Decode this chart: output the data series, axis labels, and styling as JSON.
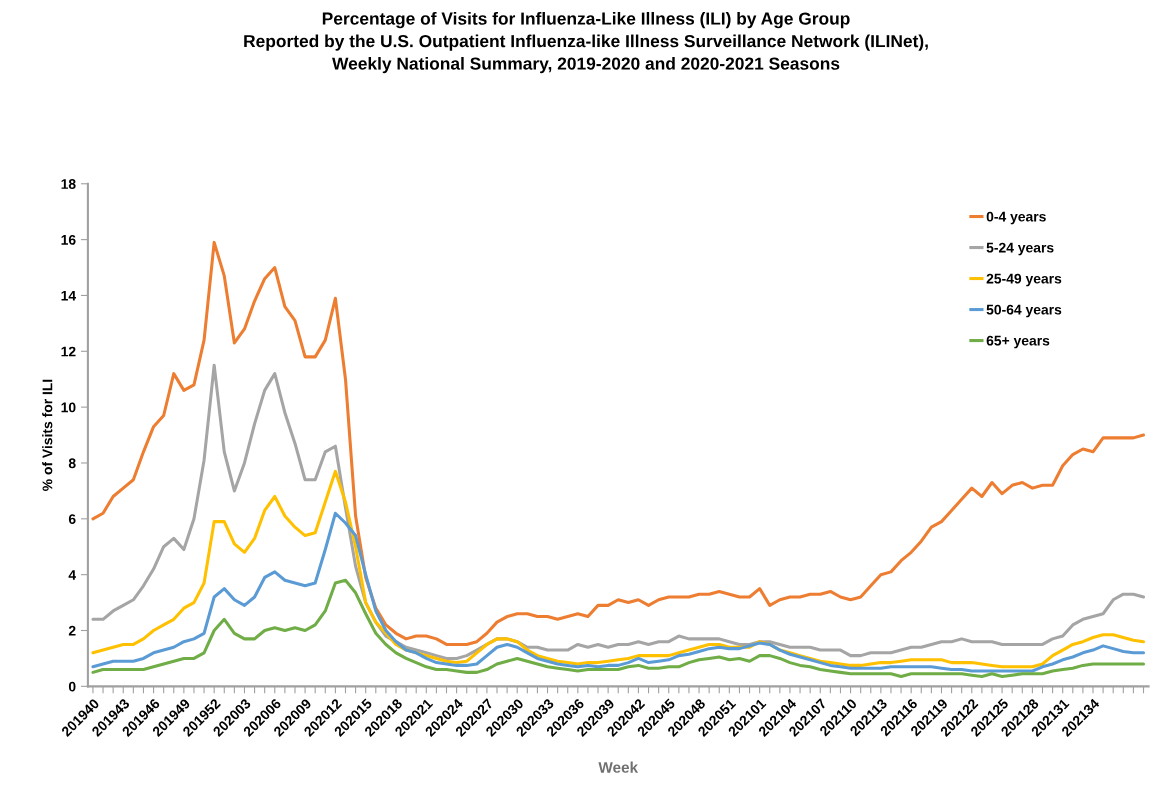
{
  "chart_data": {
    "type": "line",
    "title": "Percentage of Visits for Influenza-Like Illness (ILI) by Age Group\nReported by the U.S. Outpatient Influenza-like Illness Surveillance Network (ILINet),\nWeekly National Summary, 2019-2020 and 2020-2021 Seasons",
    "xlabel": "Week",
    "ylabel": "% of Visits for ILI",
    "categories": [
      "201940",
      null,
      null,
      "201943",
      null,
      null,
      "201946",
      null,
      null,
      "201949",
      null,
      null,
      "201952",
      null,
      null,
      "202003",
      null,
      null,
      "202006",
      null,
      null,
      "202009",
      null,
      null,
      "202012",
      null,
      null,
      "202015",
      null,
      null,
      "202018",
      null,
      null,
      "202021",
      null,
      null,
      "202024",
      null,
      null,
      "202027",
      null,
      null,
      "202030",
      null,
      null,
      "202033",
      null,
      null,
      "202036",
      null,
      null,
      "202039",
      null,
      null,
      "202042",
      null,
      null,
      "202045",
      null,
      null,
      "202048",
      null,
      null,
      "202051",
      null,
      null,
      "202101",
      null,
      null,
      "202104",
      null,
      null,
      "202107",
      null,
      null,
      "202110",
      null,
      null,
      "202113",
      null,
      null,
      "202116",
      null,
      null,
      "202119",
      null,
      null,
      "202122",
      null,
      null,
      "202125",
      null,
      null,
      "202128",
      null,
      null,
      "202131",
      null,
      null,
      "202134",
      null,
      null,
      null,
      null,
      null
    ],
    "series": [
      {
        "name": "0-4 years",
        "color": "#ed7d31",
        "values": [
          6.0,
          6.2,
          6.8,
          7.1,
          7.4,
          8.4,
          9.3,
          9.7,
          11.2,
          10.6,
          10.8,
          12.4,
          15.9,
          14.7,
          12.3,
          12.8,
          13.8,
          14.6,
          15.0,
          13.6,
          13.1,
          11.8,
          11.8,
          12.4,
          13.9,
          11.0,
          6.1,
          3.9,
          2.8,
          2.2,
          1.9,
          1.7,
          1.8,
          1.8,
          1.7,
          1.5,
          1.5,
          1.5,
          1.6,
          1.9,
          2.3,
          2.5,
          2.6,
          2.6,
          2.5,
          2.5,
          2.4,
          2.5,
          2.6,
          2.5,
          2.9,
          2.9,
          3.1,
          3.0,
          3.1,
          2.9,
          3.1,
          3.2,
          3.2,
          3.2,
          3.3,
          3.3,
          3.4,
          3.3,
          3.2,
          3.2,
          3.5,
          2.9,
          3.1,
          3.2,
          3.2,
          3.3,
          3.3,
          3.4,
          3.2,
          3.1,
          3.2,
          3.6,
          4.0,
          4.1,
          4.5,
          4.8,
          5.2,
          5.7,
          5.9,
          6.3,
          6.7,
          7.1,
          6.8,
          7.3,
          6.9,
          7.2,
          7.3,
          7.1,
          7.2,
          7.2,
          7.9,
          8.3,
          8.5,
          8.4,
          8.9,
          8.9,
          8.9,
          8.9,
          9.0
        ]
      },
      {
        "name": "5-24 years",
        "color": "#a5a5a5",
        "values": [
          2.4,
          2.4,
          2.7,
          2.9,
          3.1,
          3.6,
          4.2,
          5.0,
          5.3,
          4.9,
          6.0,
          8.1,
          11.5,
          8.4,
          7.0,
          8.0,
          9.4,
          10.6,
          11.2,
          9.8,
          8.7,
          7.4,
          7.4,
          8.4,
          8.6,
          6.4,
          4.3,
          3.0,
          2.3,
          1.8,
          1.6,
          1.4,
          1.3,
          1.2,
          1.1,
          1.0,
          1.0,
          1.1,
          1.3,
          1.5,
          1.7,
          1.7,
          1.6,
          1.4,
          1.4,
          1.3,
          1.3,
          1.3,
          1.5,
          1.4,
          1.5,
          1.4,
          1.5,
          1.5,
          1.6,
          1.5,
          1.6,
          1.6,
          1.8,
          1.7,
          1.7,
          1.7,
          1.7,
          1.6,
          1.5,
          1.5,
          1.6,
          1.6,
          1.5,
          1.4,
          1.4,
          1.4,
          1.3,
          1.3,
          1.3,
          1.1,
          1.1,
          1.2,
          1.2,
          1.2,
          1.3,
          1.4,
          1.4,
          1.5,
          1.6,
          1.6,
          1.7,
          1.6,
          1.6,
          1.6,
          1.5,
          1.5,
          1.5,
          1.5,
          1.5,
          1.7,
          1.8,
          2.2,
          2.4,
          2.5,
          2.6,
          3.1,
          3.3,
          3.3,
          3.2
        ]
      },
      {
        "name": "25-49 years",
        "color": "#ffc000",
        "values": [
          1.2,
          1.3,
          1.4,
          1.5,
          1.5,
          1.7,
          2.0,
          2.2,
          2.4,
          2.8,
          3.0,
          3.7,
          5.9,
          5.9,
          5.1,
          4.8,
          5.3,
          6.3,
          6.8,
          6.1,
          5.7,
          5.4,
          5.5,
          6.6,
          7.7,
          6.6,
          5.0,
          3.0,
          2.3,
          1.9,
          1.5,
          1.3,
          1.2,
          1.1,
          1.0,
          0.9,
          0.85,
          0.9,
          1.2,
          1.5,
          1.7,
          1.7,
          1.6,
          1.3,
          1.1,
          1.0,
          0.9,
          0.85,
          0.8,
          0.85,
          0.85,
          0.9,
          0.95,
          1.0,
          1.1,
          1.1,
          1.1,
          1.1,
          1.2,
          1.3,
          1.4,
          1.5,
          1.5,
          1.4,
          1.4,
          1.4,
          1.6,
          1.5,
          1.3,
          1.2,
          1.1,
          1.0,
          0.9,
          0.85,
          0.8,
          0.75,
          0.75,
          0.8,
          0.85,
          0.85,
          0.9,
          0.95,
          0.95,
          0.95,
          0.95,
          0.85,
          0.85,
          0.85,
          0.8,
          0.75,
          0.7,
          0.7,
          0.7,
          0.7,
          0.8,
          1.1,
          1.3,
          1.5,
          1.6,
          1.75,
          1.85,
          1.85,
          1.75,
          1.65,
          1.6
        ]
      },
      {
        "name": "50-64 years",
        "color": "#5b9bd5",
        "values": [
          0.7,
          0.8,
          0.9,
          0.9,
          0.9,
          1.0,
          1.2,
          1.3,
          1.4,
          1.6,
          1.7,
          1.9,
          3.2,
          3.5,
          3.1,
          2.9,
          3.2,
          3.9,
          4.1,
          3.8,
          3.7,
          3.6,
          3.7,
          4.9,
          6.2,
          5.85,
          5.4,
          4.0,
          2.7,
          2.0,
          1.6,
          1.3,
          1.2,
          1.0,
          0.85,
          0.8,
          0.75,
          0.75,
          0.8,
          1.1,
          1.4,
          1.5,
          1.4,
          1.2,
          1.0,
          0.9,
          0.8,
          0.75,
          0.7,
          0.75,
          0.7,
          0.75,
          0.75,
          0.85,
          1.0,
          0.85,
          0.9,
          0.95,
          1.1,
          1.15,
          1.25,
          1.35,
          1.4,
          1.35,
          1.35,
          1.45,
          1.55,
          1.5,
          1.3,
          1.15,
          1.05,
          0.95,
          0.85,
          0.75,
          0.7,
          0.65,
          0.65,
          0.65,
          0.65,
          0.7,
          0.7,
          0.7,
          0.7,
          0.7,
          0.65,
          0.6,
          0.6,
          0.55,
          0.55,
          0.55,
          0.55,
          0.55,
          0.55,
          0.55,
          0.7,
          0.8,
          0.95,
          1.05,
          1.2,
          1.3,
          1.45,
          1.35,
          1.25,
          1.2,
          1.2
        ]
      },
      {
        "name": "65+ years",
        "color": "#70ad47",
        "values": [
          0.5,
          0.6,
          0.6,
          0.6,
          0.6,
          0.6,
          0.7,
          0.8,
          0.9,
          1.0,
          1.0,
          1.2,
          2.0,
          2.4,
          1.9,
          1.7,
          1.7,
          2.0,
          2.1,
          2.0,
          2.1,
          2.0,
          2.2,
          2.7,
          3.7,
          3.8,
          3.35,
          2.6,
          1.9,
          1.5,
          1.2,
          1.0,
          0.85,
          0.7,
          0.6,
          0.6,
          0.55,
          0.5,
          0.5,
          0.6,
          0.8,
          0.9,
          1.0,
          0.9,
          0.8,
          0.7,
          0.65,
          0.6,
          0.55,
          0.6,
          0.6,
          0.6,
          0.6,
          0.7,
          0.75,
          0.65,
          0.65,
          0.7,
          0.7,
          0.85,
          0.95,
          1.0,
          1.05,
          0.95,
          1.0,
          0.9,
          1.1,
          1.1,
          1.0,
          0.85,
          0.75,
          0.7,
          0.6,
          0.55,
          0.5,
          0.45,
          0.45,
          0.45,
          0.45,
          0.45,
          0.35,
          0.45,
          0.45,
          0.45,
          0.45,
          0.45,
          0.45,
          0.4,
          0.35,
          0.45,
          0.35,
          0.4,
          0.45,
          0.45,
          0.45,
          0.55,
          0.6,
          0.65,
          0.75,
          0.8,
          0.8,
          0.8,
          0.8,
          0.8,
          0.8
        ]
      }
    ],
    "ylim": [
      0,
      18
    ],
    "yticks": [
      0,
      2,
      4,
      6,
      8,
      10,
      12,
      14,
      16,
      18
    ],
    "legend": "top right"
  }
}
